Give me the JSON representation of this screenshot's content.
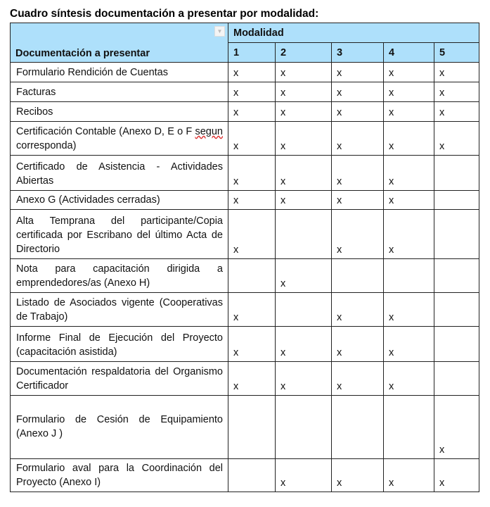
{
  "title": "Cuadro síntesis documentación a presentar por modalidad:",
  "header": {
    "doc_label": "Documentación a presentar",
    "group_label": "Modalidad",
    "columns": [
      "1",
      "2",
      "3",
      "4",
      "5"
    ],
    "header_color": "#aee0fb"
  },
  "rows": [
    {
      "label": "Formulario Rendición de Cuentas",
      "marks": [
        "x",
        "x",
        "x",
        "x",
        "x"
      ]
    },
    {
      "label": "Facturas",
      "marks": [
        "x",
        "x",
        "x",
        "x",
        "x"
      ]
    },
    {
      "label": "Recibos",
      "marks": [
        "x",
        "x",
        "x",
        "x",
        "x"
      ]
    },
    {
      "label": "Certificación Contable (Anexo D, E o F segun corresponda)",
      "marks": [
        "x",
        "x",
        "x",
        "x",
        "x"
      ]
    },
    {
      "label": "Certificado de Asistencia - Actividades Abiertas",
      "marks": [
        "x",
        "x",
        "x",
        "x",
        ""
      ]
    },
    {
      "label": "Anexo G (Actividades cerradas)",
      "marks": [
        "x",
        "x",
        "x",
        "x",
        ""
      ]
    },
    {
      "label": "Alta Temprana del participante/Copia certificada por Escribano del último Acta de Directorio",
      "marks": [
        "x",
        "",
        "x",
        "x",
        ""
      ]
    },
    {
      "label": "Nota para capacitación dirigida a emprendedores/as (Anexo H)",
      "marks": [
        "",
        "x",
        "",
        "",
        ""
      ]
    },
    {
      "label": "Listado de Asociados vigente (Cooperativas de Trabajo)",
      "marks": [
        "x",
        "",
        "x",
        "x",
        ""
      ]
    },
    {
      "label": "Informe Final de Ejecución del Proyecto (capacitación asistida)",
      "marks": [
        "x",
        "x",
        "x",
        "x",
        ""
      ]
    },
    {
      "label": "Documentación respaldatoria del Organismo Certificador",
      "marks": [
        "x",
        "x",
        "x",
        "x",
        ""
      ]
    },
    {
      "label": "Formulario de Cesión de Equipamiento (Anexo J )",
      "marks": [
        "",
        "",
        "",
        "",
        "x"
      ]
    },
    {
      "label": "Formulario aval para la Coordinación del Proyecto (Anexo I)",
      "marks": [
        "",
        "x",
        "x",
        "x",
        "x"
      ]
    }
  ]
}
